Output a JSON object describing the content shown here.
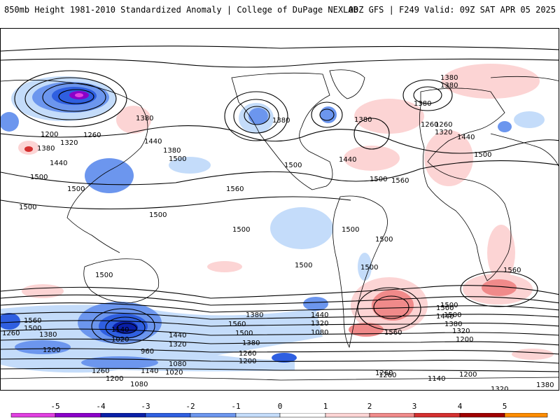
{
  "header": {
    "title": "850mb Height 1981-2010 Standardized Anomaly | College of DuPage NEXLAB",
    "run_info": "00Z GFS | F249 Valid: 09Z SAT APR 05 2025"
  },
  "contour_labels": [
    "1380",
    "1380",
    "1380",
    "1380",
    "1260",
    "1200",
    "1320",
    "1260",
    "1380",
    "1440",
    "1380",
    "1380",
    "1500",
    "1440",
    "1500",
    "1500",
    "1380",
    "1260",
    "1320",
    "1440",
    "1440",
    "1500",
    "1500",
    "1560",
    "1560",
    "1500",
    "1500",
    "1500",
    "1500",
    "1500",
    "1500",
    "1500",
    "1500",
    "1500",
    "1500",
    "1560",
    "1560",
    "1500",
    "1380",
    "1560",
    "1260",
    "1200",
    "1140",
    "1020",
    "1440",
    "1320",
    "1260",
    "1200",
    "1080",
    "1380",
    "1500",
    "960",
    "1080",
    "1020",
    "1260",
    "1200",
    "1140",
    "1080",
    "1140",
    "1080",
    "1020",
    "1440",
    "1320",
    "1380",
    "1260",
    "1500",
    "1440",
    "1380",
    "1320",
    "1200",
    "1560",
    "1260",
    "1140",
    "1200",
    "1320",
    "1380",
    "1200",
    "1260",
    "1500"
  ],
  "colorbar": {
    "ticks": [
      "-5",
      "-4",
      "-3",
      "-2",
      "-1",
      "0",
      "1",
      "2",
      "3",
      "4",
      "5"
    ],
    "colors": [
      "#e040e0",
      "#8a00c8",
      "#0a1fa8",
      "#2f5fe0",
      "#6c96ee",
      "#c4dcfa",
      "#ffffff",
      "#fcd4d4",
      "#f08a8a",
      "#d43030",
      "#a00000",
      "#ff8c00",
      "#ffc000"
    ]
  }
}
